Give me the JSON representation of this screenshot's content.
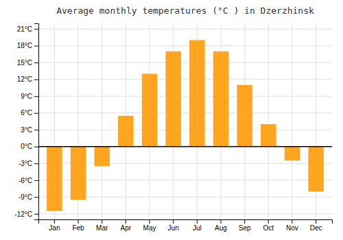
{
  "chart_data": {
    "type": "bar",
    "title": "Average monthly temperatures (°C ) in Dzerzhinsk",
    "categories": [
      "Jan",
      "Feb",
      "Mar",
      "Apr",
      "May",
      "Jun",
      "Jul",
      "Aug",
      "Sep",
      "Oct",
      "Nov",
      "Dec"
    ],
    "values": [
      -11.5,
      -9.5,
      -3.5,
      5.5,
      13.0,
      17.0,
      19.0,
      17.0,
      11.0,
      4.0,
      -2.5,
      -8.0
    ],
    "color": "#FFA520",
    "ylim": [
      -13,
      22
    ],
    "yticks": [
      {
        "value": -12,
        "label": "-12°C"
      },
      {
        "value": -9,
        "label": "-9°C"
      },
      {
        "value": -6,
        "label": "-6°C"
      },
      {
        "value": -3,
        "label": "-3°C"
      },
      {
        "value": 0,
        "label": "0°C"
      },
      {
        "value": 3,
        "label": "3°C"
      },
      {
        "value": 6,
        "label": "6°C"
      },
      {
        "value": 9,
        "label": "9°C"
      },
      {
        "value": 12,
        "label": "12°C"
      },
      {
        "value": 15,
        "label": "15°C"
      },
      {
        "value": 18,
        "label": "18°C"
      },
      {
        "value": 21,
        "label": "21°C"
      }
    ],
    "grid": true
  }
}
